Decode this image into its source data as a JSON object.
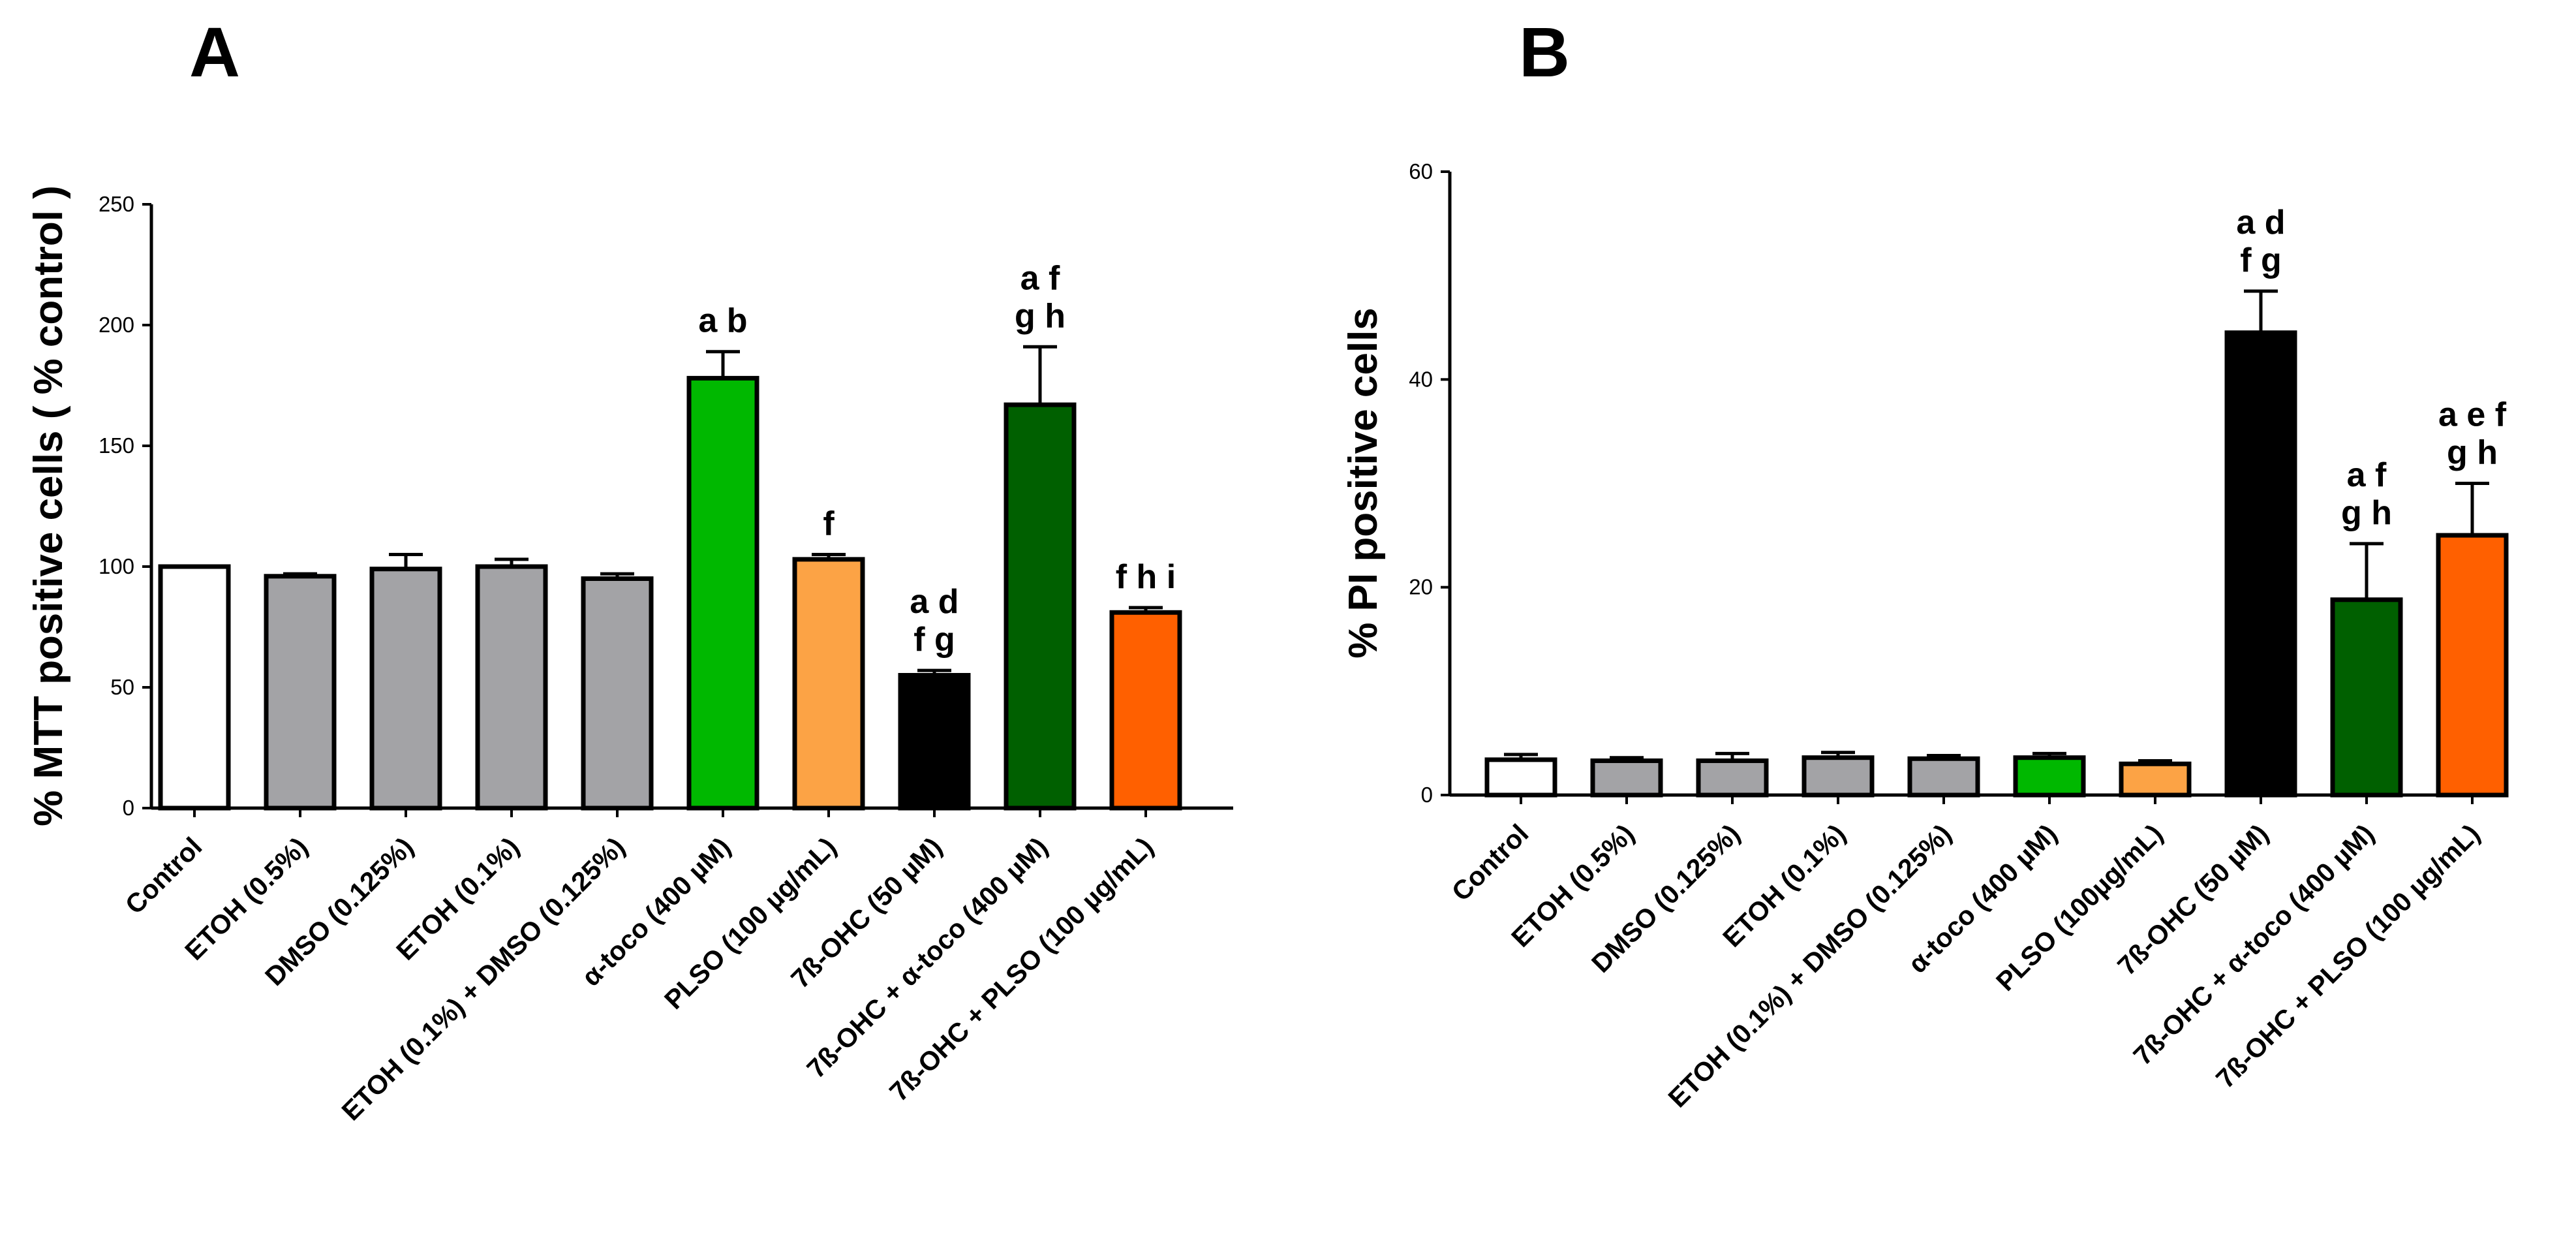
{
  "chart_data": [
    {
      "panel": "A",
      "type": "bar",
      "title": "",
      "xlabel": "",
      "ylabel": "% MTT positive cells ( % control )",
      "ylim": [
        0,
        250
      ],
      "yticks": [
        0,
        50,
        100,
        150,
        200,
        250
      ],
      "categories": [
        "Control",
        "ETOH (0.5%)",
        "DMSO (0.125%)",
        "ETOH (0.1%)",
        "ETOH (0.1%) + DMSO (0.125%)",
        "α-toco (400 µM)",
        "PLSO (100 µg/mL)",
        "7ß-OHC (50 µM)",
        "7ß-OHC + α-toco (400 µM)",
        "7ß-OHC + PLSO (100 µg/mL)"
      ],
      "values": [
        100,
        96,
        99,
        100,
        95,
        178,
        103,
        55,
        167,
        81
      ],
      "errors": [
        0,
        1,
        6,
        3,
        2,
        11,
        2,
        2,
        24,
        2
      ],
      "colors": [
        "#ffffff",
        "#a3a3a6",
        "#a3a3a6",
        "#a3a3a6",
        "#a3a3a6",
        "#00b800",
        "#fca345",
        "#000000",
        "#006000",
        "#ff6000"
      ],
      "significance": [
        [],
        [],
        [],
        [],
        [],
        [
          "a b"
        ],
        [
          "f"
        ],
        [
          "a d",
          "f g"
        ],
        [
          "a f",
          "g h"
        ],
        [
          "f h i"
        ]
      ]
    },
    {
      "panel": "B",
      "type": "bar",
      "title": "",
      "xlabel": "",
      "ylabel": "% PI positive cells",
      "ylim": [
        0,
        60
      ],
      "yticks": [
        0,
        20,
        40,
        60
      ],
      "categories": [
        "Control",
        "ETOH (0.5%)",
        "DMSO (0.125%)",
        "ETOH (0.1%)",
        "ETOH (0.1%) + DMSO (0.125%)",
        "α-toco (400 µM)",
        "PLSO (100µg/mL)",
        "7ß-OHC (50 µM)",
        "7ß-OHC + α-toco (400 µM)",
        "7ß-OHC + PLSO (100 µg/mL)"
      ],
      "values": [
        3.4,
        3.3,
        3.3,
        3.6,
        3.5,
        3.6,
        3.0,
        44.5,
        18.8,
        25.0
      ],
      "errors": [
        0.5,
        0.3,
        0.7,
        0.5,
        0.3,
        0.4,
        0.3,
        4.0,
        5.4,
        5.0
      ],
      "colors": [
        "#ffffff",
        "#a3a3a6",
        "#a3a3a6",
        "#a3a3a6",
        "#a3a3a6",
        "#00b800",
        "#fca345",
        "#000000",
        "#006000",
        "#ff6000"
      ],
      "significance": [
        [],
        [],
        [],
        [],
        [],
        [],
        [],
        [
          "a d",
          "f g"
        ],
        [
          "a f",
          "g h"
        ],
        [
          "a e f",
          "g h"
        ]
      ]
    }
  ]
}
